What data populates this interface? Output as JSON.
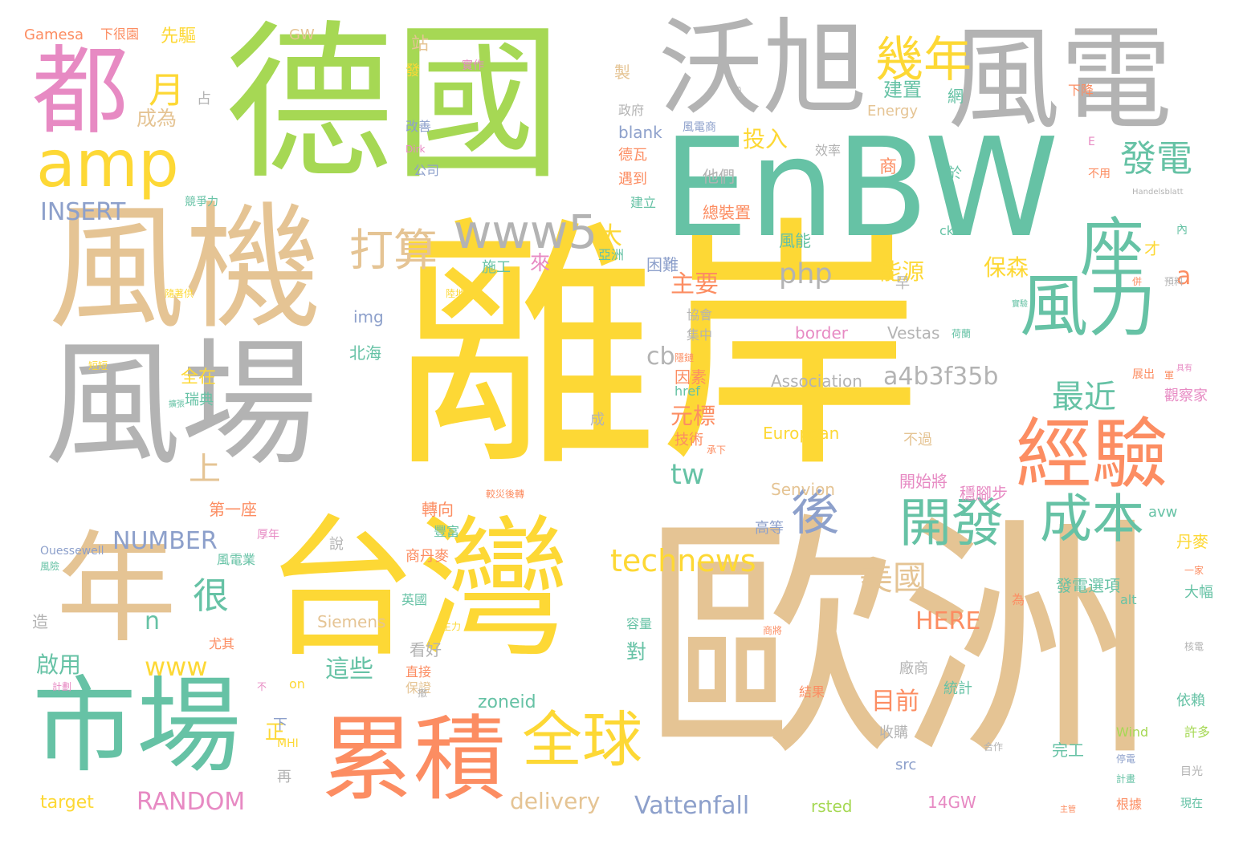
{
  "palette": {
    "yellow": "#fdd835",
    "green": "#a6d854",
    "teal": "#66c2a5",
    "orange": "#fc8d62",
    "tan": "#e5c494",
    "gray": "#b3b3b3",
    "blue": "#8da0cb",
    "pink": "#e78ac3"
  },
  "words": [
    {
      "t": "離岸",
      "c": "yellow"
    },
    {
      "t": "歐洲",
      "c": "tan"
    },
    {
      "t": "德國",
      "c": "green"
    },
    {
      "t": "台灣",
      "c": "yellow"
    },
    {
      "t": "風場",
      "c": "gray"
    },
    {
      "t": "風機",
      "c": "tan"
    },
    {
      "t": "EnBW",
      "c": "teal"
    },
    {
      "t": "風電",
      "c": "gray"
    },
    {
      "t": "沃旭",
      "c": "gray"
    },
    {
      "t": "年",
      "c": "tan"
    },
    {
      "t": "市場",
      "c": "teal"
    },
    {
      "t": "累積",
      "c": "orange"
    },
    {
      "t": "經驗",
      "c": "orange"
    },
    {
      "t": "都",
      "c": "pink"
    },
    {
      "t": "amp",
      "c": "yellow"
    },
    {
      "t": "風力",
      "c": "teal"
    },
    {
      "t": "座",
      "c": "teal"
    },
    {
      "t": "全球",
      "c": "yellow"
    },
    {
      "t": "開發",
      "c": "teal"
    },
    {
      "t": "成本",
      "c": "teal"
    },
    {
      "t": "後",
      "c": "blue"
    },
    {
      "t": "幾年",
      "c": "yellow"
    },
    {
      "t": "打算",
      "c": "tan"
    },
    {
      "t": "www5",
      "c": "gray"
    },
    {
      "t": "發電",
      "c": "teal"
    },
    {
      "t": "月",
      "c": "yellow"
    },
    {
      "t": "technews",
      "c": "yellow"
    },
    {
      "t": "美國",
      "c": "tan"
    },
    {
      "t": "最近",
      "c": "teal"
    },
    {
      "t": "a4b3f35b",
      "c": "gray"
    },
    {
      "t": "很",
      "c": "teal"
    },
    {
      "t": "上",
      "c": "tan"
    },
    {
      "t": "NUMBER",
      "c": "blue"
    },
    {
      "t": "RANDOM",
      "c": "pink"
    },
    {
      "t": "www",
      "c": "yellow"
    },
    {
      "t": "delivery",
      "c": "tan"
    },
    {
      "t": "Vattenfall",
      "c": "blue"
    },
    {
      "t": "php",
      "c": "gray"
    },
    {
      "t": "INSERT",
      "c": "blue"
    },
    {
      "t": "tw",
      "c": "teal"
    },
    {
      "t": "HERE",
      "c": "orange"
    },
    {
      "t": "主要",
      "c": "orange"
    },
    {
      "t": "能源",
      "c": "yellow"
    },
    {
      "t": "保森",
      "c": "yellow"
    },
    {
      "t": "元標",
      "c": "orange"
    },
    {
      "t": "目前",
      "c": "orange"
    },
    {
      "t": "這些",
      "c": "teal"
    },
    {
      "t": "啟用",
      "c": "teal"
    },
    {
      "t": "大",
      "c": "yellow"
    },
    {
      "t": "來",
      "c": "pink"
    },
    {
      "t": "建置",
      "c": "teal"
    },
    {
      "t": "投入",
      "c": "yellow"
    },
    {
      "t": "a",
      "c": "orange"
    },
    {
      "t": "cb",
      "c": "gray"
    },
    {
      "t": "n",
      "c": "teal"
    },
    {
      "t": "成為",
      "c": "tan"
    },
    {
      "t": "對",
      "c": "teal"
    },
    {
      "t": "正",
      "c": "yellow"
    },
    {
      "t": "Association",
      "c": "gray"
    },
    {
      "t": "European",
      "c": "yellow"
    },
    {
      "t": "Senvion",
      "c": "tan"
    },
    {
      "t": "border",
      "c": "pink"
    },
    {
      "t": "Vestas",
      "c": "gray"
    },
    {
      "t": "zoneid",
      "c": "teal"
    },
    {
      "t": "Siemens",
      "c": "tan"
    },
    {
      "t": "target",
      "c": "yellow"
    },
    {
      "t": "Gamesa",
      "c": "orange"
    },
    {
      "t": "下很園",
      "c": "orange"
    },
    {
      "t": "先驅",
      "c": "yellow"
    },
    {
      "t": "GW",
      "c": "tan"
    },
    {
      "t": "站",
      "c": "tan"
    },
    {
      "t": "發",
      "c": "yellow"
    },
    {
      "t": "占",
      "c": "gray"
    },
    {
      "t": "製",
      "c": "tan"
    },
    {
      "t": "政府",
      "c": "gray"
    },
    {
      "t": "網",
      "c": "teal"
    },
    {
      "t": "下降",
      "c": "orange"
    },
    {
      "t": "改善",
      "c": "blue"
    },
    {
      "t": "blank",
      "c": "blue"
    },
    {
      "t": "風電商",
      "c": "blue"
    },
    {
      "t": "Energy",
      "c": "tan"
    },
    {
      "t": "德瓦",
      "c": "orange"
    },
    {
      "t": "遇到",
      "c": "orange"
    },
    {
      "t": "建立",
      "c": "teal"
    },
    {
      "t": "他們",
      "c": "gray"
    },
    {
      "t": "總裝置",
      "c": "orange"
    },
    {
      "t": "效率",
      "c": "gray"
    },
    {
      "t": "商",
      "c": "orange"
    },
    {
      "t": "於",
      "c": "teal"
    },
    {
      "t": "不用",
      "c": "orange"
    },
    {
      "t": "Handelsblatt",
      "c": "gray"
    },
    {
      "t": "競爭力",
      "c": "teal"
    },
    {
      "t": "風能",
      "c": "teal"
    },
    {
      "t": "ck",
      "c": "teal"
    },
    {
      "t": "才",
      "c": "yellow"
    },
    {
      "t": "施工",
      "c": "teal"
    },
    {
      "t": "困難",
      "c": "blue"
    },
    {
      "t": "亞洲",
      "c": "teal"
    },
    {
      "t": "早",
      "c": "gray"
    },
    {
      "t": "img",
      "c": "blue"
    },
    {
      "t": "協會",
      "c": "gray"
    },
    {
      "t": "集中",
      "c": "gray"
    },
    {
      "t": "北海",
      "c": "teal"
    },
    {
      "t": "全在",
      "c": "yellow"
    },
    {
      "t": "瑞典",
      "c": "teal"
    },
    {
      "t": "因素",
      "c": "orange"
    },
    {
      "t": "href",
      "c": "teal"
    },
    {
      "t": "展出",
      "c": "orange"
    },
    {
      "t": "觀察家",
      "c": "pink"
    },
    {
      "t": "技術",
      "c": "orange"
    },
    {
      "t": "不過",
      "c": "tan"
    },
    {
      "t": "開始將",
      "c": "pink"
    },
    {
      "t": "穩腳步",
      "c": "pink"
    },
    {
      "t": "avw",
      "c": "teal"
    },
    {
      "t": "第一座",
      "c": "orange"
    },
    {
      "t": "轉向",
      "c": "orange"
    },
    {
      "t": "豐富",
      "c": "teal"
    },
    {
      "t": "高等",
      "c": "blue"
    },
    {
      "t": "丹麥",
      "c": "yellow"
    },
    {
      "t": "說",
      "c": "gray"
    },
    {
      "t": "風電業",
      "c": "teal"
    },
    {
      "t": "商丹麥",
      "c": "orange"
    },
    {
      "t": "英國",
      "c": "teal"
    },
    {
      "t": "發電選項",
      "c": "teal"
    },
    {
      "t": "alt",
      "c": "teal"
    },
    {
      "t": "大幅",
      "c": "teal"
    },
    {
      "t": "為",
      "c": "orange"
    },
    {
      "t": "造",
      "c": "gray"
    },
    {
      "t": "尤其",
      "c": "orange"
    },
    {
      "t": "看好",
      "c": "gray"
    },
    {
      "t": "廠商",
      "c": "gray"
    },
    {
      "t": "統計",
      "c": "teal"
    },
    {
      "t": "容量",
      "c": "teal"
    },
    {
      "t": "on",
      "c": "yellow"
    },
    {
      "t": "直接",
      "c": "orange"
    },
    {
      "t": "保證",
      "c": "tan"
    },
    {
      "t": "依賴",
      "c": "teal"
    },
    {
      "t": "結果",
      "c": "orange"
    },
    {
      "t": "下",
      "c": "blue"
    },
    {
      "t": "MHI",
      "c": "yellow"
    },
    {
      "t": "收購",
      "c": "gray"
    },
    {
      "t": "Wind",
      "c": "green"
    },
    {
      "t": "許多",
      "c": "green"
    },
    {
      "t": "完工",
      "c": "teal"
    },
    {
      "t": "src",
      "c": "blue"
    },
    {
      "t": "目光",
      "c": "gray"
    },
    {
      "t": "再",
      "c": "gray"
    },
    {
      "t": "rsted",
      "c": "green"
    },
    {
      "t": "14GW",
      "c": "pink"
    },
    {
      "t": "根據",
      "c": "orange"
    },
    {
      "t": "現在",
      "c": "teal"
    },
    {
      "t": "主管",
      "c": "orange"
    },
    {
      "t": "Ouessewell",
      "c": "blue"
    },
    {
      "t": "成",
      "c": "gray"
    },
    {
      "t": "∅",
      "c": "gray"
    },
    {
      "t": "Dirk",
      "c": "pink"
    },
    {
      "t": "公司",
      "c": "blue"
    },
    {
      "t": "E",
      "c": "pink"
    },
    {
      "t": "內",
      "c": "teal"
    },
    {
      "t": "併",
      "c": "orange"
    },
    {
      "t": "預料",
      "c": "gray"
    },
    {
      "t": "軍",
      "c": "orange"
    },
    {
      "t": "具有",
      "c": "pink"
    },
    {
      "t": "核電",
      "c": "gray"
    },
    {
      "t": "一家",
      "c": "orange"
    },
    {
      "t": "風險",
      "c": "teal"
    },
    {
      "t": "計劃",
      "c": "pink"
    },
    {
      "t": "不",
      "c": "pink"
    },
    {
      "t": "撤",
      "c": "gray"
    },
    {
      "t": "主力",
      "c": "yellow"
    },
    {
      "t": "商將",
      "c": "orange"
    },
    {
      "t": "隱鏈",
      "c": "orange"
    },
    {
      "t": "實驗",
      "c": "teal"
    },
    {
      "t": "荷蘭",
      "c": "teal"
    },
    {
      "t": "合作",
      "c": "gray"
    },
    {
      "t": "停電",
      "c": "blue"
    },
    {
      "t": "計畫",
      "c": "teal"
    },
    {
      "t": "承下",
      "c": "orange"
    },
    {
      "t": "實作",
      "c": "pink"
    },
    {
      "t": "陸地",
      "c": "yellow"
    },
    {
      "t": "隨著供",
      "c": "yellow"
    },
    {
      "t": "擴張",
      "c": "teal"
    },
    {
      "t": "短短",
      "c": "yellow"
    },
    {
      "t": "厚年",
      "c": "pink"
    },
    {
      "t": "較災後轉",
      "c": "orange"
    },
    {
      "t": "發的電",
      "c": "orange"
    },
    {
      "t": "電力",
      "c": "pink"
    }
  ]
}
